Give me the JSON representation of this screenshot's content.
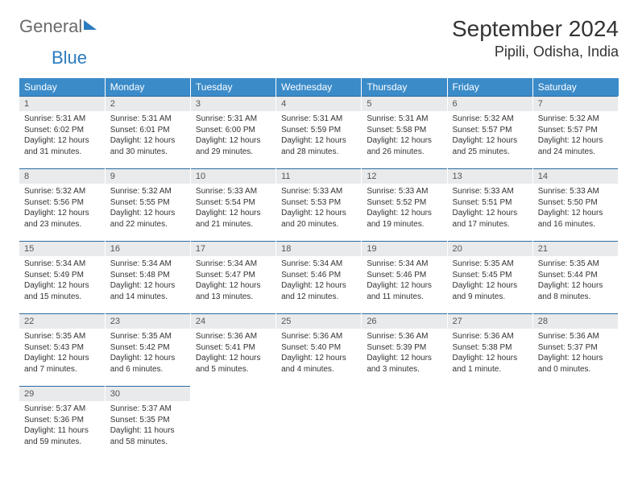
{
  "brand": {
    "part1": "General",
    "part2": "Blue"
  },
  "title": "September 2024",
  "location": "Pipili, Odisha, India",
  "weekdays": [
    "Sunday",
    "Monday",
    "Tuesday",
    "Wednesday",
    "Thursday",
    "Friday",
    "Saturday"
  ],
  "colors": {
    "header_bg": "#3b8bc9",
    "header_text": "#ffffff",
    "daynum_bg": "#e9eaec",
    "border": "#2a6aa0",
    "brand_blue": "#2a7bbf",
    "brand_gray": "#6a6a6a",
    "text": "#333333",
    "page_bg": "#ffffff"
  },
  "typography": {
    "title_fontsize": 28,
    "location_fontsize": 18,
    "weekday_fontsize": 12,
    "daynum_fontsize": 11,
    "cell_fontsize": 10
  },
  "days": [
    {
      "n": 1,
      "sunrise": "5:31 AM",
      "sunset": "6:02 PM",
      "daylight": "12 hours and 31 minutes."
    },
    {
      "n": 2,
      "sunrise": "5:31 AM",
      "sunset": "6:01 PM",
      "daylight": "12 hours and 30 minutes."
    },
    {
      "n": 3,
      "sunrise": "5:31 AM",
      "sunset": "6:00 PM",
      "daylight": "12 hours and 29 minutes."
    },
    {
      "n": 4,
      "sunrise": "5:31 AM",
      "sunset": "5:59 PM",
      "daylight": "12 hours and 28 minutes."
    },
    {
      "n": 5,
      "sunrise": "5:31 AM",
      "sunset": "5:58 PM",
      "daylight": "12 hours and 26 minutes."
    },
    {
      "n": 6,
      "sunrise": "5:32 AM",
      "sunset": "5:57 PM",
      "daylight": "12 hours and 25 minutes."
    },
    {
      "n": 7,
      "sunrise": "5:32 AM",
      "sunset": "5:57 PM",
      "daylight": "12 hours and 24 minutes."
    },
    {
      "n": 8,
      "sunrise": "5:32 AM",
      "sunset": "5:56 PM",
      "daylight": "12 hours and 23 minutes."
    },
    {
      "n": 9,
      "sunrise": "5:32 AM",
      "sunset": "5:55 PM",
      "daylight": "12 hours and 22 minutes."
    },
    {
      "n": 10,
      "sunrise": "5:33 AM",
      "sunset": "5:54 PM",
      "daylight": "12 hours and 21 minutes."
    },
    {
      "n": 11,
      "sunrise": "5:33 AM",
      "sunset": "5:53 PM",
      "daylight": "12 hours and 20 minutes."
    },
    {
      "n": 12,
      "sunrise": "5:33 AM",
      "sunset": "5:52 PM",
      "daylight": "12 hours and 19 minutes."
    },
    {
      "n": 13,
      "sunrise": "5:33 AM",
      "sunset": "5:51 PM",
      "daylight": "12 hours and 17 minutes."
    },
    {
      "n": 14,
      "sunrise": "5:33 AM",
      "sunset": "5:50 PM",
      "daylight": "12 hours and 16 minutes."
    },
    {
      "n": 15,
      "sunrise": "5:34 AM",
      "sunset": "5:49 PM",
      "daylight": "12 hours and 15 minutes."
    },
    {
      "n": 16,
      "sunrise": "5:34 AM",
      "sunset": "5:48 PM",
      "daylight": "12 hours and 14 minutes."
    },
    {
      "n": 17,
      "sunrise": "5:34 AM",
      "sunset": "5:47 PM",
      "daylight": "12 hours and 13 minutes."
    },
    {
      "n": 18,
      "sunrise": "5:34 AM",
      "sunset": "5:46 PM",
      "daylight": "12 hours and 12 minutes."
    },
    {
      "n": 19,
      "sunrise": "5:34 AM",
      "sunset": "5:46 PM",
      "daylight": "12 hours and 11 minutes."
    },
    {
      "n": 20,
      "sunrise": "5:35 AM",
      "sunset": "5:45 PM",
      "daylight": "12 hours and 9 minutes."
    },
    {
      "n": 21,
      "sunrise": "5:35 AM",
      "sunset": "5:44 PM",
      "daylight": "12 hours and 8 minutes."
    },
    {
      "n": 22,
      "sunrise": "5:35 AM",
      "sunset": "5:43 PM",
      "daylight": "12 hours and 7 minutes."
    },
    {
      "n": 23,
      "sunrise": "5:35 AM",
      "sunset": "5:42 PM",
      "daylight": "12 hours and 6 minutes."
    },
    {
      "n": 24,
      "sunrise": "5:36 AM",
      "sunset": "5:41 PM",
      "daylight": "12 hours and 5 minutes."
    },
    {
      "n": 25,
      "sunrise": "5:36 AM",
      "sunset": "5:40 PM",
      "daylight": "12 hours and 4 minutes."
    },
    {
      "n": 26,
      "sunrise": "5:36 AM",
      "sunset": "5:39 PM",
      "daylight": "12 hours and 3 minutes."
    },
    {
      "n": 27,
      "sunrise": "5:36 AM",
      "sunset": "5:38 PM",
      "daylight": "12 hours and 1 minute."
    },
    {
      "n": 28,
      "sunrise": "5:36 AM",
      "sunset": "5:37 PM",
      "daylight": "12 hours and 0 minutes."
    },
    {
      "n": 29,
      "sunrise": "5:37 AM",
      "sunset": "5:36 PM",
      "daylight": "11 hours and 59 minutes."
    },
    {
      "n": 30,
      "sunrise": "5:37 AM",
      "sunset": "5:35 PM",
      "daylight": "11 hours and 58 minutes."
    }
  ],
  "labels": {
    "sunrise": "Sunrise:",
    "sunset": "Sunset:",
    "daylight": "Daylight:"
  },
  "layout": {
    "first_weekday_index": 0,
    "weeks": 5,
    "cols": 7
  }
}
